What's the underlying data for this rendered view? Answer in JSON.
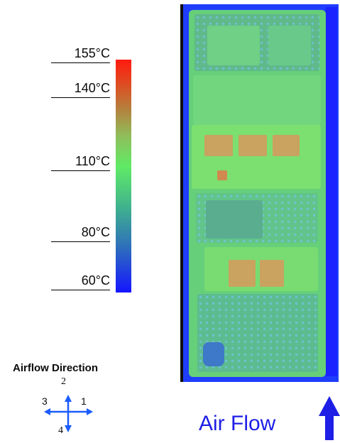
{
  "temperature_scale": {
    "labels": [
      "155°C",
      "140°C",
      "110°C",
      "80°C",
      "60°C"
    ],
    "colors": {
      "hot": "#ff1a10",
      "warm": "#b2843f",
      "mid": "#5fea66",
      "cool": "#2d6dbd",
      "cold": "#1515ff"
    }
  },
  "airflow_legend": {
    "title": "Airflow Direction",
    "directions": [
      "1",
      "2",
      "3",
      "4"
    ],
    "arrow_color": "#1a5cff"
  },
  "air_flow": {
    "label": "Air Flow",
    "arrow_color": "#1e1ee6"
  },
  "board": {
    "background_color": "#1f3dff",
    "surface_color": "#66cf79",
    "hotspot_color": "#c9a35f"
  }
}
